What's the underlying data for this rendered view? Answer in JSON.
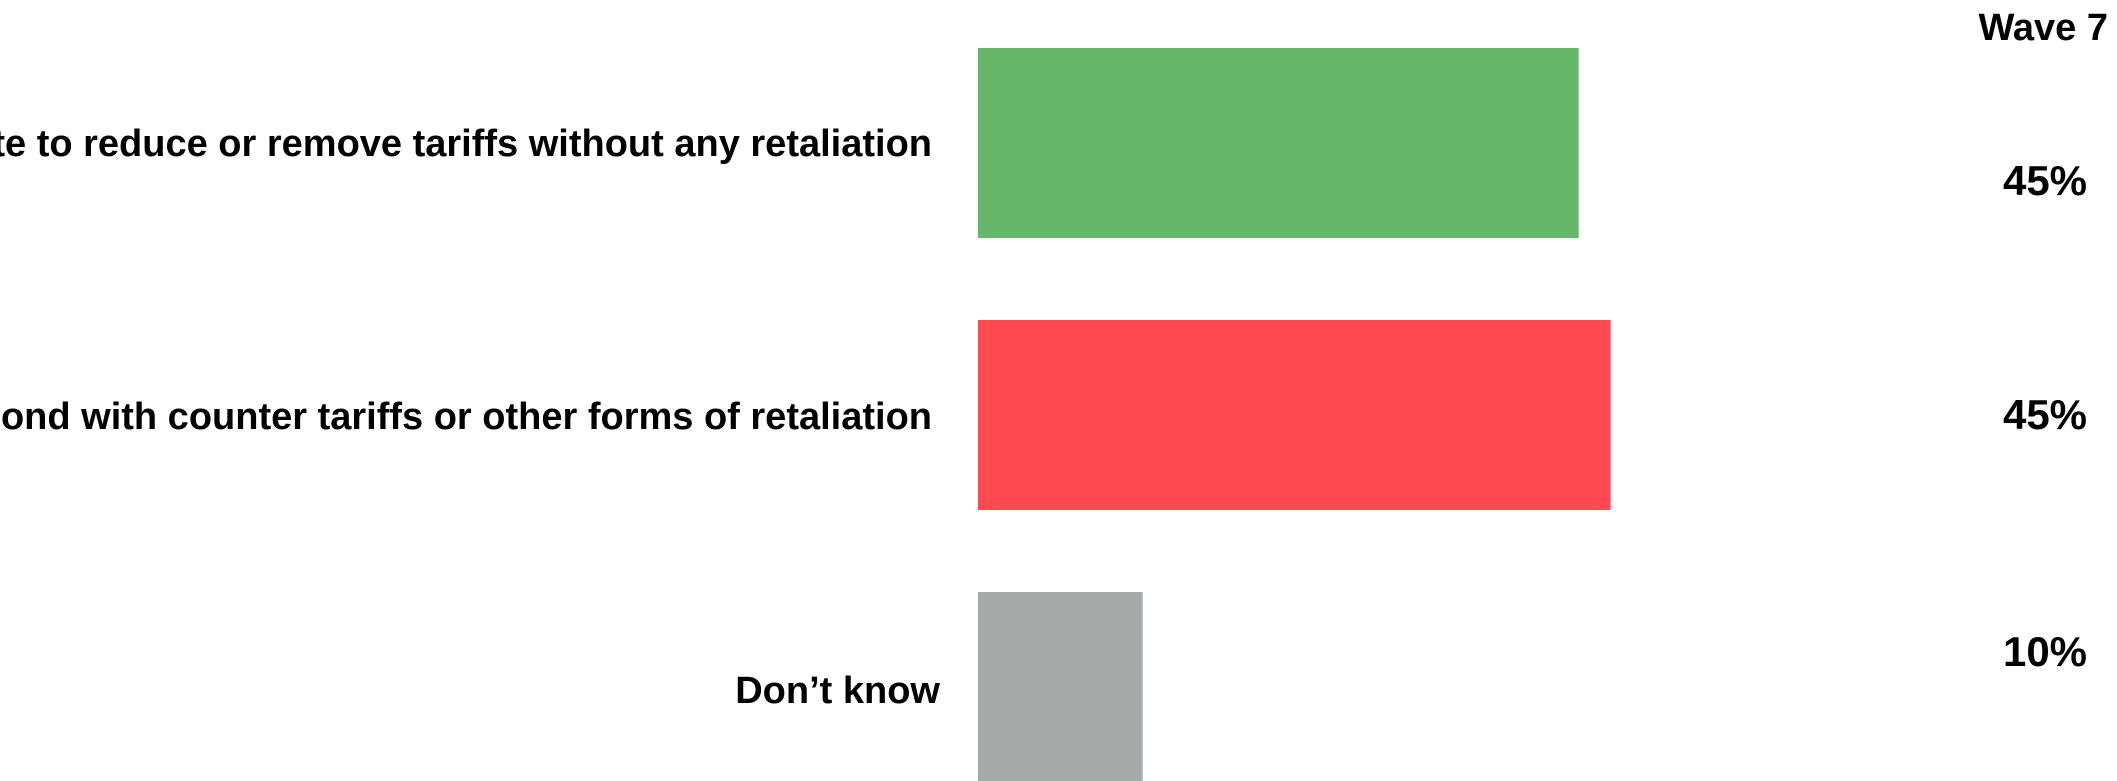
{
  "chart_data": {
    "type": "bar",
    "orientation": "horizontal",
    "column_header": "Wave 7",
    "categories": [
      "The UK should try to negotiate to reduce or remove tariffs without any retaliation",
      "The UK should respond with counter tariffs or other forms of retaliation",
      "Don’t know"
    ],
    "values": [
      45,
      45,
      10
    ],
    "value_labels": [
      "45%",
      "45%",
      "10%"
    ],
    "colors": [
      "#67b76a",
      "#ff4a52",
      "#a7aaab"
    ],
    "unit": "%",
    "xlim": [
      0,
      100
    ],
    "grid": false,
    "legend": "none"
  }
}
